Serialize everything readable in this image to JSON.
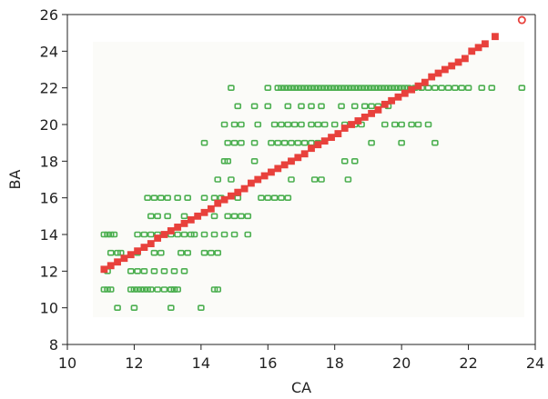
{
  "chart_data": {
    "type": "scatter",
    "title": "",
    "xlabel": "CA",
    "ylabel": "BA",
    "xlim": [
      10,
      24
    ],
    "ylim": [
      8,
      26
    ],
    "xticks": [
      10,
      12,
      14,
      16,
      18,
      20,
      22,
      24
    ],
    "yticks": [
      8,
      10,
      12,
      14,
      16,
      18,
      20,
      22,
      24,
      26
    ],
    "grid": false,
    "colors": {
      "observed": "#4caf50",
      "fitted": "#e8413c",
      "axis": "#222222",
      "plot_bg": "#fbfbf8"
    },
    "series": [
      {
        "marker": "open-square",
        "points": [
          [
            11.1,
            11
          ],
          [
            11.2,
            11
          ],
          [
            11.3,
            11
          ],
          [
            11.1,
            14
          ],
          [
            11.2,
            14
          ],
          [
            11.3,
            14
          ],
          [
            11.4,
            14
          ],
          [
            11.3,
            13
          ],
          [
            11.5,
            13
          ],
          [
            11.2,
            12
          ],
          [
            11.5,
            10
          ],
          [
            12.0,
            10
          ],
          [
            11.9,
            11
          ],
          [
            12.0,
            11
          ],
          [
            12.1,
            11
          ],
          [
            12.2,
            11
          ],
          [
            12.3,
            11
          ],
          [
            12.4,
            11
          ],
          [
            12.5,
            11
          ],
          [
            12.7,
            11
          ],
          [
            12.9,
            11
          ],
          [
            13.1,
            11
          ],
          [
            13.2,
            11
          ],
          [
            13.3,
            11
          ],
          [
            11.6,
            13
          ],
          [
            12.1,
            13
          ],
          [
            12.6,
            13
          ],
          [
            12.8,
            13
          ],
          [
            13.4,
            13
          ],
          [
            13.6,
            13
          ],
          [
            14.1,
            13
          ],
          [
            14.3,
            13
          ],
          [
            14.5,
            13
          ],
          [
            12.1,
            14
          ],
          [
            12.3,
            14
          ],
          [
            12.5,
            14
          ],
          [
            12.7,
            14
          ],
          [
            12.9,
            14
          ],
          [
            13.1,
            14
          ],
          [
            13.3,
            14
          ],
          [
            13.5,
            14
          ],
          [
            13.7,
            14
          ],
          [
            13.8,
            14
          ],
          [
            14.1,
            14
          ],
          [
            14.4,
            14
          ],
          [
            14.7,
            14
          ],
          [
            15.0,
            14
          ],
          [
            15.4,
            14
          ],
          [
            11.9,
            12
          ],
          [
            12.1,
            12
          ],
          [
            12.3,
            12
          ],
          [
            12.6,
            12
          ],
          [
            12.9,
            12
          ],
          [
            13.2,
            12
          ],
          [
            13.5,
            12
          ],
          [
            12.5,
            15
          ],
          [
            12.7,
            15
          ],
          [
            13.0,
            15
          ],
          [
            13.5,
            15
          ],
          [
            13.9,
            15
          ],
          [
            14.4,
            15
          ],
          [
            14.8,
            15
          ],
          [
            15.0,
            15
          ],
          [
            15.2,
            15
          ],
          [
            15.4,
            15
          ],
          [
            12.4,
            16
          ],
          [
            12.6,
            16
          ],
          [
            12.8,
            16
          ],
          [
            13.0,
            16
          ],
          [
            13.3,
            16
          ],
          [
            13.6,
            16
          ],
          [
            14.1,
            16
          ],
          [
            14.4,
            16
          ],
          [
            14.6,
            16
          ],
          [
            15.1,
            16
          ],
          [
            15.8,
            16
          ],
          [
            16.0,
            16
          ],
          [
            16.2,
            16
          ],
          [
            16.4,
            16
          ],
          [
            16.6,
            16
          ],
          [
            14.5,
            17
          ],
          [
            14.9,
            17
          ],
          [
            16.7,
            17
          ],
          [
            17.4,
            17
          ],
          [
            17.6,
            17
          ],
          [
            13.1,
            11
          ],
          [
            13.2,
            11
          ],
          [
            14.4,
            11
          ],
          [
            14.5,
            11
          ],
          [
            13.1,
            10
          ],
          [
            14.0,
            10
          ],
          [
            14.1,
            19
          ],
          [
            14.7,
            18
          ],
          [
            14.8,
            18
          ],
          [
            15.6,
            18
          ],
          [
            16.7,
            18
          ],
          [
            18.3,
            18
          ],
          [
            18.6,
            18
          ],
          [
            18.4,
            17
          ],
          [
            14.8,
            19
          ],
          [
            15.0,
            19
          ],
          [
            15.2,
            19
          ],
          [
            15.6,
            19
          ],
          [
            16.1,
            19
          ],
          [
            16.3,
            19
          ],
          [
            16.5,
            19
          ],
          [
            16.7,
            19
          ],
          [
            16.9,
            19
          ],
          [
            17.1,
            19
          ],
          [
            17.3,
            19
          ],
          [
            17.5,
            19
          ],
          [
            19.1,
            19
          ],
          [
            20.0,
            19
          ],
          [
            21.0,
            19
          ],
          [
            14.7,
            20
          ],
          [
            15.0,
            20
          ],
          [
            15.2,
            20
          ],
          [
            15.7,
            20
          ],
          [
            16.2,
            20
          ],
          [
            16.4,
            20
          ],
          [
            16.6,
            20
          ],
          [
            16.8,
            20
          ],
          [
            17.0,
            20
          ],
          [
            17.3,
            20
          ],
          [
            17.5,
            20
          ],
          [
            17.7,
            20
          ],
          [
            18.0,
            20
          ],
          [
            18.3,
            20
          ],
          [
            18.6,
            20
          ],
          [
            18.8,
            20
          ],
          [
            19.5,
            20
          ],
          [
            19.8,
            20
          ],
          [
            20.0,
            20
          ],
          [
            20.3,
            20
          ],
          [
            20.5,
            20
          ],
          [
            20.8,
            20
          ],
          [
            15.1,
            21
          ],
          [
            15.6,
            21
          ],
          [
            16.0,
            21
          ],
          [
            16.6,
            21
          ],
          [
            17.0,
            21
          ],
          [
            17.3,
            21
          ],
          [
            17.6,
            21
          ],
          [
            18.2,
            21
          ],
          [
            18.6,
            21
          ],
          [
            18.9,
            21
          ],
          [
            19.1,
            21
          ],
          [
            19.3,
            21
          ],
          [
            19.6,
            21
          ],
          [
            14.9,
            22
          ],
          [
            16.0,
            22
          ],
          [
            16.3,
            22
          ],
          [
            16.4,
            22
          ],
          [
            16.5,
            22
          ],
          [
            16.6,
            22
          ],
          [
            16.7,
            22
          ],
          [
            16.8,
            22
          ],
          [
            16.9,
            22
          ],
          [
            17.0,
            22
          ],
          [
            17.1,
            22
          ],
          [
            17.2,
            22
          ],
          [
            17.3,
            22
          ],
          [
            17.4,
            22
          ],
          [
            17.5,
            22
          ],
          [
            17.6,
            22
          ],
          [
            17.7,
            22
          ],
          [
            17.8,
            22
          ],
          [
            17.9,
            22
          ],
          [
            18.0,
            22
          ],
          [
            18.1,
            22
          ],
          [
            18.2,
            22
          ],
          [
            18.3,
            22
          ],
          [
            18.4,
            22
          ],
          [
            18.5,
            22
          ],
          [
            18.6,
            22
          ],
          [
            18.7,
            22
          ],
          [
            18.8,
            22
          ],
          [
            18.9,
            22
          ],
          [
            19.0,
            22
          ],
          [
            19.1,
            22
          ],
          [
            19.2,
            22
          ],
          [
            19.3,
            22
          ],
          [
            19.4,
            22
          ],
          [
            19.5,
            22
          ],
          [
            19.6,
            22
          ],
          [
            19.7,
            22
          ],
          [
            19.8,
            22
          ],
          [
            19.9,
            22
          ],
          [
            20.0,
            22
          ],
          [
            20.1,
            22
          ],
          [
            20.2,
            22
          ],
          [
            20.4,
            22
          ],
          [
            20.6,
            22
          ],
          [
            20.8,
            22
          ],
          [
            21.0,
            22
          ],
          [
            21.2,
            22
          ],
          [
            21.4,
            22
          ],
          [
            21.6,
            22
          ],
          [
            21.8,
            22
          ],
          [
            22.0,
            22
          ],
          [
            22.4,
            22
          ],
          [
            22.7,
            22
          ],
          [
            23.6,
            22
          ]
        ]
      },
      {
        "marker": "filled-square",
        "points": [
          [
            11.1,
            12.1
          ],
          [
            11.3,
            12.3
          ],
          [
            11.5,
            12.5
          ],
          [
            11.7,
            12.7
          ],
          [
            11.9,
            12.9
          ],
          [
            12.1,
            13.1
          ],
          [
            12.3,
            13.3
          ],
          [
            12.5,
            13.5
          ],
          [
            12.7,
            13.8
          ],
          [
            12.9,
            14.0
          ],
          [
            13.1,
            14.2
          ],
          [
            13.3,
            14.4
          ],
          [
            13.5,
            14.6
          ],
          [
            13.7,
            14.8
          ],
          [
            13.9,
            15.0
          ],
          [
            14.1,
            15.2
          ],
          [
            14.3,
            15.4
          ],
          [
            14.5,
            15.7
          ],
          [
            14.7,
            15.9
          ],
          [
            14.9,
            16.1
          ],
          [
            15.1,
            16.3
          ],
          [
            15.3,
            16.5
          ],
          [
            15.5,
            16.8
          ],
          [
            15.7,
            17.0
          ],
          [
            15.9,
            17.2
          ],
          [
            16.1,
            17.4
          ],
          [
            16.3,
            17.6
          ],
          [
            16.5,
            17.8
          ],
          [
            16.7,
            18.0
          ],
          [
            16.9,
            18.2
          ],
          [
            17.1,
            18.4
          ],
          [
            17.3,
            18.7
          ],
          [
            17.5,
            18.9
          ],
          [
            17.7,
            19.1
          ],
          [
            17.9,
            19.3
          ],
          [
            18.1,
            19.5
          ],
          [
            18.3,
            19.8
          ],
          [
            18.5,
            20.0
          ],
          [
            18.7,
            20.2
          ],
          [
            18.9,
            20.4
          ],
          [
            19.1,
            20.6
          ],
          [
            19.3,
            20.8
          ],
          [
            19.5,
            21.1
          ],
          [
            19.7,
            21.3
          ],
          [
            19.9,
            21.5
          ],
          [
            20.1,
            21.7
          ],
          [
            20.3,
            21.9
          ],
          [
            20.5,
            22.1
          ],
          [
            20.7,
            22.3
          ],
          [
            20.9,
            22.6
          ],
          [
            21.1,
            22.8
          ],
          [
            21.3,
            23.0
          ],
          [
            21.5,
            23.2
          ],
          [
            21.7,
            23.4
          ],
          [
            21.9,
            23.6
          ],
          [
            22.1,
            24.0
          ],
          [
            22.3,
            24.2
          ],
          [
            22.5,
            24.4
          ],
          [
            22.8,
            24.8
          ]
        ]
      },
      {
        "marker": "open-circle",
        "points": [
          [
            23.6,
            25.7
          ]
        ]
      }
    ]
  }
}
